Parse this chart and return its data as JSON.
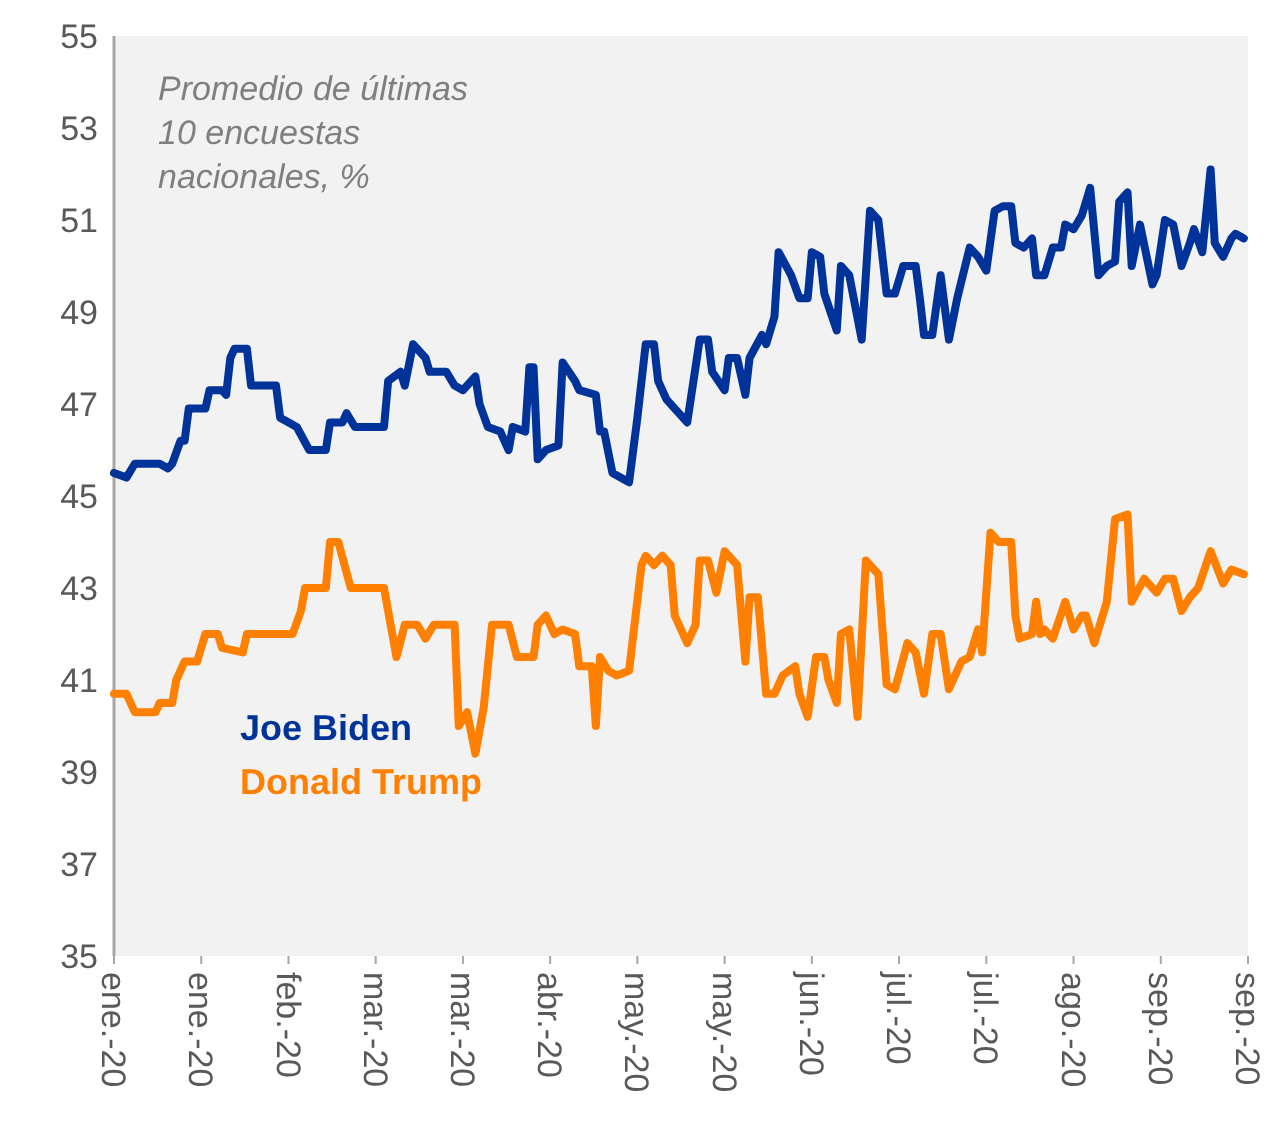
{
  "chart_data": {
    "type": "line",
    "annotations": [
      "Promedio de últimas 10 encuestas nacionales, %"
    ],
    "xlim": [
      "2020-01-01",
      "2020-09-30"
    ],
    "xticks": [
      {
        "value": "2020-01-01",
        "label": "ene.-20"
      },
      {
        "value": "2020-01-22",
        "label": "ene.-20"
      },
      {
        "value": "2020-02-12",
        "label": "feb.-20"
      },
      {
        "value": "2020-03-04",
        "label": "mar.-20"
      },
      {
        "value": "2020-03-25",
        "label": "mar.-20"
      },
      {
        "value": "2020-04-15",
        "label": "abr.-20"
      },
      {
        "value": "2020-05-06",
        "label": "may.-20"
      },
      {
        "value": "2020-05-27",
        "label": "may.-20"
      },
      {
        "value": "2020-06-17",
        "label": "jun.-20"
      },
      {
        "value": "2020-07-08",
        "label": "jul.-20"
      },
      {
        "value": "2020-07-29",
        "label": "jul.-20"
      },
      {
        "value": "2020-08-19",
        "label": "ago.-20"
      },
      {
        "value": "2020-09-09",
        "label": "sep.-20"
      },
      {
        "value": "2020-09-30",
        "label": "sep.-20"
      }
    ],
    "ylim": [
      35,
      55
    ],
    "yticks": [
      35,
      37,
      39,
      41,
      43,
      45,
      47,
      49,
      51,
      53,
      55
    ],
    "grid": false,
    "legend": "bottom left",
    "marker": "none",
    "line_style": "solid",
    "series": [
      {
        "name": "Joe Biden",
        "color": "#003399",
        "x": [
          "2020-01-01",
          "2020-01-04",
          "2020-01-06",
          "2020-01-12",
          "2020-01-14",
          "2020-01-15",
          "2020-01-17",
          "2020-01-18",
          "2020-01-19",
          "2020-01-23",
          "2020-01-24",
          "2020-01-27",
          "2020-01-28",
          "2020-01-29",
          "2020-01-30",
          "2020-02-02",
          "2020-02-03",
          "2020-02-09",
          "2020-02-10",
          "2020-02-14",
          "2020-02-17",
          "2020-02-21",
          "2020-02-22",
          "2020-02-25",
          "2020-02-26",
          "2020-02-28",
          "2020-03-06",
          "2020-03-07",
          "2020-03-10",
          "2020-03-11",
          "2020-03-13",
          "2020-03-16",
          "2020-03-17",
          "2020-03-21",
          "2020-03-23",
          "2020-03-25",
          "2020-03-28",
          "2020-03-29",
          "2020-03-31",
          "2020-04-03",
          "2020-04-05",
          "2020-04-06",
          "2020-04-09",
          "2020-04-10",
          "2020-04-11",
          "2020-04-12",
          "2020-04-14",
          "2020-04-17",
          "2020-04-18",
          "2020-04-21",
          "2020-04-22",
          "2020-04-26",
          "2020-04-27",
          "2020-04-28",
          "2020-04-30",
          "2020-05-04",
          "2020-05-06",
          "2020-05-08",
          "2020-05-10",
          "2020-05-11",
          "2020-05-13",
          "2020-05-15",
          "2020-05-18",
          "2020-05-21",
          "2020-05-23",
          "2020-05-24",
          "2020-05-27",
          "2020-05-28",
          "2020-05-30",
          "2020-06-01",
          "2020-06-02",
          "2020-06-05",
          "2020-06-06",
          "2020-06-08",
          "2020-06-09",
          "2020-06-12",
          "2020-06-14",
          "2020-06-16",
          "2020-06-17",
          "2020-06-19",
          "2020-06-20",
          "2020-06-23",
          "2020-06-24",
          "2020-06-26",
          "2020-06-29",
          "2020-07-01",
          "2020-07-03",
          "2020-07-05",
          "2020-07-07",
          "2020-07-09",
          "2020-07-12",
          "2020-07-13",
          "2020-07-14",
          "2020-07-16",
          "2020-07-18",
          "2020-07-20",
          "2020-07-22",
          "2020-07-25",
          "2020-07-27",
          "2020-07-29",
          "2020-07-31",
          "2020-08-02",
          "2020-08-04",
          "2020-08-05",
          "2020-08-07",
          "2020-08-09",
          "2020-08-10",
          "2020-08-12",
          "2020-08-14",
          "2020-08-16",
          "2020-08-17",
          "2020-08-19",
          "2020-08-21",
          "2020-08-23",
          "2020-08-25",
          "2020-08-27",
          "2020-08-29",
          "2020-08-30",
          "2020-09-01",
          "2020-09-02",
          "2020-09-04",
          "2020-09-07",
          "2020-09-08",
          "2020-09-10",
          "2020-09-12",
          "2020-09-14",
          "2020-09-16",
          "2020-09-17",
          "2020-09-19",
          "2020-09-21",
          "2020-09-22",
          "2020-09-24",
          "2020-09-26",
          "2020-09-27",
          "2020-09-29"
        ],
        "values": [
          45.5,
          45.4,
          45.7,
          45.7,
          45.6,
          45.7,
          46.2,
          46.2,
          46.9,
          46.9,
          47.3,
          47.3,
          47.2,
          48.0,
          48.2,
          48.2,
          47.4,
          47.4,
          46.7,
          46.5,
          46.0,
          46.0,
          46.6,
          46.6,
          46.8,
          46.5,
          46.5,
          47.5,
          47.7,
          47.4,
          48.3,
          48.0,
          47.7,
          47.7,
          47.4,
          47.3,
          47.6,
          47.0,
          46.5,
          46.4,
          46.0,
          46.5,
          46.4,
          47.8,
          47.8,
          45.8,
          46.0,
          46.1,
          47.9,
          47.5,
          47.3,
          47.2,
          46.4,
          46.4,
          45.5,
          45.3,
          46.7,
          48.3,
          48.3,
          47.5,
          47.1,
          46.9,
          46.6,
          48.4,
          48.4,
          47.7,
          47.3,
          48.0,
          48.0,
          47.2,
          48.0,
          48.5,
          48.3,
          48.9,
          50.3,
          49.8,
          49.3,
          49.3,
          50.3,
          50.2,
          49.4,
          48.6,
          50.0,
          49.8,
          48.4,
          51.2,
          51.0,
          49.4,
          49.4,
          50.0,
          50.0,
          49.3,
          48.5,
          48.5,
          49.8,
          48.4,
          49.3,
          50.4,
          50.2,
          49.9,
          51.2,
          51.3,
          51.3,
          50.5,
          50.4,
          50.6,
          49.8,
          49.8,
          50.4,
          50.4,
          50.9,
          50.8,
          51.1,
          51.7,
          49.8,
          50.0,
          50.1,
          51.4,
          51.6,
          50.0,
          50.9,
          49.6,
          49.8,
          51.0,
          50.9,
          50.0,
          50.5,
          50.8,
          50.3,
          52.1,
          50.5,
          50.2,
          50.6,
          50.7,
          50.6
        ]
      },
      {
        "name": "Donald Trump",
        "color": "#ff7f00",
        "x": [
          "2020-01-01",
          "2020-01-04",
          "2020-01-06",
          "2020-01-11",
          "2020-01-12",
          "2020-01-15",
          "2020-01-16",
          "2020-01-18",
          "2020-01-21",
          "2020-01-23",
          "2020-01-26",
          "2020-01-27",
          "2020-02-01",
          "2020-02-02",
          "2020-02-13",
          "2020-02-15",
          "2020-02-16",
          "2020-02-21",
          "2020-02-22",
          "2020-02-24",
          "2020-02-27",
          "2020-03-06",
          "2020-03-09",
          "2020-03-11",
          "2020-03-14",
          "2020-03-16",
          "2020-03-18",
          "2020-03-23",
          "2020-03-24",
          "2020-03-26",
          "2020-03-28",
          "2020-03-30",
          "2020-04-01",
          "2020-04-05",
          "2020-04-07",
          "2020-04-11",
          "2020-04-12",
          "2020-04-14",
          "2020-04-16",
          "2020-04-18",
          "2020-04-21",
          "2020-04-22",
          "2020-04-25",
          "2020-04-26",
          "2020-04-27",
          "2020-04-29",
          "2020-05-01",
          "2020-05-04",
          "2020-05-07",
          "2020-05-08",
          "2020-05-10",
          "2020-05-12",
          "2020-05-14",
          "2020-05-15",
          "2020-05-18",
          "2020-05-20",
          "2020-05-21",
          "2020-05-23",
          "2020-05-25",
          "2020-05-27",
          "2020-05-30",
          "2020-06-01",
          "2020-06-02",
          "2020-06-04",
          "2020-06-06",
          "2020-06-08",
          "2020-06-10",
          "2020-06-13",
          "2020-06-14",
          "2020-06-16",
          "2020-06-18",
          "2020-06-20",
          "2020-06-21",
          "2020-06-23",
          "2020-06-24",
          "2020-06-26",
          "2020-06-28",
          "2020-06-30",
          "2020-07-03",
          "2020-07-05",
          "2020-07-07",
          "2020-07-10",
          "2020-07-12",
          "2020-07-14",
          "2020-07-16",
          "2020-07-18",
          "2020-07-20",
          "2020-07-23",
          "2020-07-25",
          "2020-07-27",
          "2020-07-28",
          "2020-07-30",
          "2020-08-01",
          "2020-08-04",
          "2020-08-05",
          "2020-08-06",
          "2020-08-09",
          "2020-08-10",
          "2020-08-11",
          "2020-08-12",
          "2020-08-14",
          "2020-08-17",
          "2020-08-19",
          "2020-08-21",
          "2020-08-22",
          "2020-08-24",
          "2020-08-27",
          "2020-08-29",
          "2020-09-01",
          "2020-09-02",
          "2020-09-05",
          "2020-09-08",
          "2020-09-10",
          "2020-09-12",
          "2020-09-14",
          "2020-09-16",
          "2020-09-18",
          "2020-09-21",
          "2020-09-24",
          "2020-09-26",
          "2020-09-29"
        ],
        "values": [
          40.7,
          40.7,
          40.3,
          40.3,
          40.5,
          40.5,
          41.0,
          41.4,
          41.4,
          42.0,
          42.0,
          41.7,
          41.6,
          42.0,
          42.0,
          42.5,
          43.0,
          43.0,
          44.0,
          44.0,
          43.0,
          43.0,
          41.5,
          42.2,
          42.2,
          41.9,
          42.2,
          42.2,
          40.0,
          40.3,
          39.4,
          40.4,
          42.2,
          42.2,
          41.5,
          41.5,
          42.2,
          42.4,
          42.0,
          42.1,
          42.0,
          41.3,
          41.3,
          40.0,
          41.5,
          41.2,
          41.1,
          41.2,
          43.5,
          43.7,
          43.5,
          43.7,
          43.5,
          42.4,
          41.8,
          42.2,
          43.6,
          43.6,
          42.9,
          43.8,
          43.5,
          41.4,
          42.8,
          42.8,
          40.7,
          40.7,
          41.1,
          41.3,
          40.7,
          40.2,
          41.5,
          41.5,
          41.0,
          40.5,
          42.0,
          42.1,
          40.2,
          43.6,
          43.3,
          40.9,
          40.8,
          41.8,
          41.6,
          40.7,
          42.0,
          42.0,
          40.8,
          41.4,
          41.5,
          42.1,
          41.6,
          44.2,
          44.0,
          44.0,
          42.4,
          41.9,
          42.0,
          42.7,
          42.0,
          42.1,
          41.9,
          42.7,
          42.1,
          42.4,
          42.4,
          41.8,
          42.7,
          44.5,
          44.6,
          42.7,
          43.2,
          42.9,
          43.2,
          43.2,
          42.5,
          42.8,
          43.0,
          43.8,
          43.1,
          43.4,
          43.3
        ]
      }
    ]
  }
}
